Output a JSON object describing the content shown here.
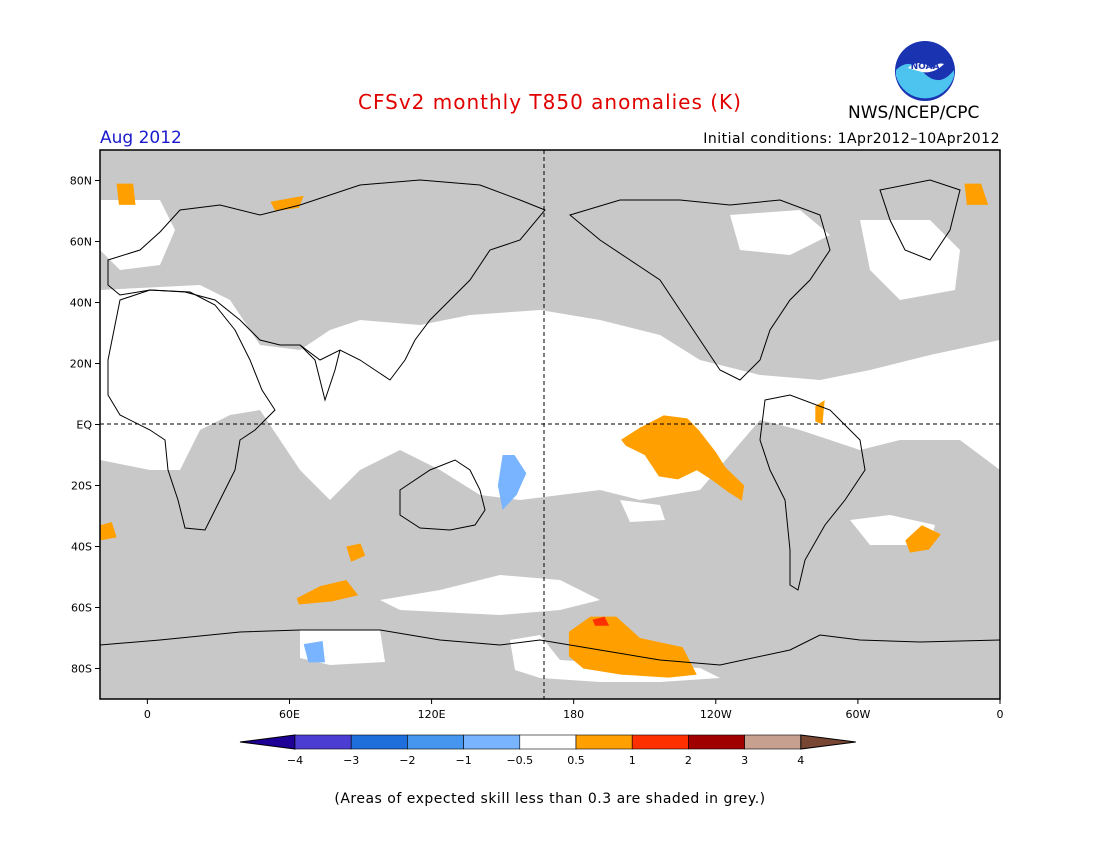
{
  "title": "CFSv2 monthly T850 anomalies (K)",
  "organization": "NWS/NCEP/CPC",
  "logo_text": "NOAA",
  "valid_month": "Aug 2012",
  "initial_conditions": "Initial conditions: 1Apr2012–10Apr2012",
  "footnote": "(Areas of expected skill less than 0.3 are shaded in grey.)",
  "map": {
    "lat_labels": [
      "80N",
      "60N",
      "40N",
      "20N",
      "EQ",
      "20S",
      "40S",
      "60S",
      "80S"
    ],
    "lon_labels": [
      "0",
      "60E",
      "120E",
      "180",
      "120W",
      "60W",
      "0"
    ],
    "lat_range": [
      -90,
      90
    ],
    "lon_range": [
      -20,
      360
    ],
    "dashed_reference_lines": [
      "EQ",
      "180"
    ],
    "grey_skill_mask": "#c8c8c8",
    "land_outline": "#000000",
    "features": [
      {
        "name": "eastern-tropical-pacific-warm-anomaly",
        "color": "#ffa000",
        "points": [
          [
            200,
            -5
          ],
          [
            208,
            -1
          ],
          [
            218,
            3
          ],
          [
            228,
            2
          ],
          [
            233,
            -2
          ],
          [
            240,
            -9
          ],
          [
            244,
            -14
          ],
          [
            252,
            -20
          ],
          [
            251,
            -25
          ],
          [
            245,
            -22
          ],
          [
            238,
            -18
          ],
          [
            232,
            -15
          ],
          [
            224,
            -18
          ],
          [
            216,
            -17
          ],
          [
            210,
            -10
          ],
          [
            202,
            -7
          ]
        ]
      },
      {
        "name": "south-america-coast-warm-anomaly",
        "color": "#ffa000",
        "points": [
          [
            282,
            6
          ],
          [
            286,
            8
          ],
          [
            285,
            0
          ],
          [
            282,
            1
          ]
        ]
      },
      {
        "name": "arctic-greenland-sea-warm-anomaly",
        "color": "#ffa000",
        "points": [
          [
            -13,
            79
          ],
          [
            -6,
            79
          ],
          [
            -5,
            72
          ],
          [
            -12,
            72
          ]
        ]
      },
      {
        "name": "arctic-greenland-sea-warm-anomaly-2",
        "color": "#ffa000",
        "points": [
          [
            345,
            79
          ],
          [
            352,
            79
          ],
          [
            355,
            72
          ],
          [
            346,
            72
          ]
        ]
      },
      {
        "name": "barents-sea-warm-anomaly",
        "color": "#ffa000",
        "points": [
          [
            52,
            73
          ],
          [
            66,
            75
          ],
          [
            64,
            71
          ],
          [
            54,
            70
          ]
        ]
      },
      {
        "name": "south-atlantic-warm-anomaly",
        "color": "#ffa000",
        "points": [
          [
            -20,
            -33
          ],
          [
            -15,
            -32
          ],
          [
            -13,
            -37
          ],
          [
            -20,
            -38
          ]
        ]
      },
      {
        "name": "south-atlantic-warm-anomaly-2",
        "color": "#ffa000",
        "points": [
          [
            320,
            -38
          ],
          [
            327,
            -33
          ],
          [
            335,
            -36
          ],
          [
            330,
            -41
          ],
          [
            322,
            -42
          ]
        ]
      },
      {
        "name": "southern-indian-ocean-warm-anomaly",
        "color": "#ffa000",
        "points": [
          [
            63,
            -57
          ],
          [
            73,
            -53
          ],
          [
            84,
            -51
          ],
          [
            89,
            -56
          ],
          [
            78,
            -58
          ],
          [
            64,
            -59
          ]
        ]
      },
      {
        "name": "southern-indian-ocean-warm-anomaly-2",
        "color": "#ffa000",
        "points": [
          [
            84,
            -40
          ],
          [
            90,
            -39
          ],
          [
            92,
            -43
          ],
          [
            86,
            -45
          ]
        ]
      },
      {
        "name": "amundsen-sea-warm-anomaly",
        "color": "#ffa000",
        "points": [
          [
            178,
            -68
          ],
          [
            187,
            -63
          ],
          [
            198,
            -63
          ],
          [
            208,
            -70
          ],
          [
            226,
            -73
          ],
          [
            232,
            -82
          ],
          [
            220,
            -83
          ],
          [
            200,
            -82
          ],
          [
            184,
            -80
          ],
          [
            178,
            -76
          ]
        ]
      },
      {
        "name": "amundsen-sea-warm-core",
        "color": "#ff3000",
        "points": [
          [
            188,
            -64
          ],
          [
            193,
            -63
          ],
          [
            195,
            -66
          ],
          [
            189,
            -66
          ]
        ]
      },
      {
        "name": "coral-sea-cold-anomaly",
        "color": "#78b4ff",
        "points": [
          [
            150,
            -10
          ],
          [
            155,
            -10
          ],
          [
            160,
            -16
          ],
          [
            156,
            -23
          ],
          [
            150,
            -28
          ],
          [
            148,
            -20
          ]
        ]
      },
      {
        "name": "antarctic-coast-cold-anomaly",
        "color": "#78b4ff",
        "points": [
          [
            66,
            -72
          ],
          [
            74,
            -71
          ],
          [
            75,
            -78
          ],
          [
            68,
            -78
          ]
        ]
      }
    ]
  },
  "colorbar": {
    "labels": [
      "−4",
      "−3",
      "−2",
      "−1",
      "−0.5",
      "0.5",
      "1",
      "2",
      "3",
      "4"
    ],
    "colors": [
      "#1e0096",
      "#4b3cd2",
      "#1e6edc",
      "#4696f0",
      "#78b4ff",
      "#ffffff",
      "#ffa000",
      "#ff3000",
      "#a00000",
      "#c8a090",
      "#784632"
    ]
  }
}
